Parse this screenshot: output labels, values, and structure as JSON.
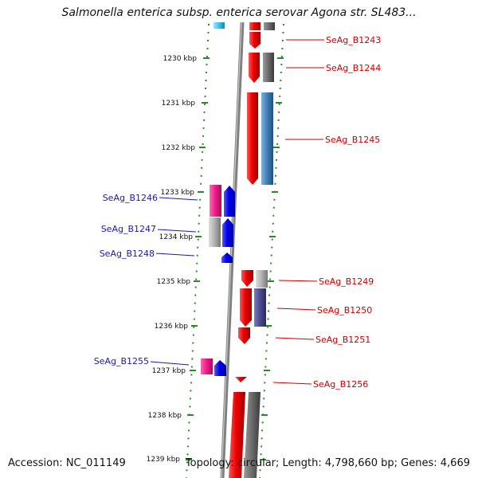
{
  "title": "Salmonella enterica subsp. enterica serovar Agona str. SL483...",
  "footer": {
    "accession": "Accession: NC_011149",
    "summary": "Topology: circular; Length: 4,798,660 bp; Genes: 4,669"
  },
  "kbp_labels": [
    "1230 kbp",
    "1231 kbp",
    "1232 kbp",
    "1233 kbp",
    "1234 kbp",
    "1235 kbp",
    "1236 kbp",
    "1237 kbp",
    "1238 kbp",
    "1239 kbp"
  ],
  "genes_right": [
    "SeAg_B1243",
    "SeAg_B1244",
    "SeAg_B1245",
    "SeAg_B1249",
    "SeAg_B1250",
    "SeAg_B1251",
    "SeAg_B1256"
  ],
  "genes_left": [
    "SeAg_B1246",
    "SeAg_B1247",
    "SeAg_B1248",
    "SeAg_B1255"
  ],
  "colors": {
    "right_label": "#cc0000",
    "left_label": "#1a1aa6",
    "ticks": "#2a8a2a",
    "backbone": "#808080",
    "gene_red": "#ee1111",
    "gene_blue": "#1515ee",
    "gene_pink": "#ee2a8a",
    "gene_gray": "#9a9a9a",
    "gene_steel": "#3f7fb5",
    "gene_purple": "#4a4a8f"
  }
}
